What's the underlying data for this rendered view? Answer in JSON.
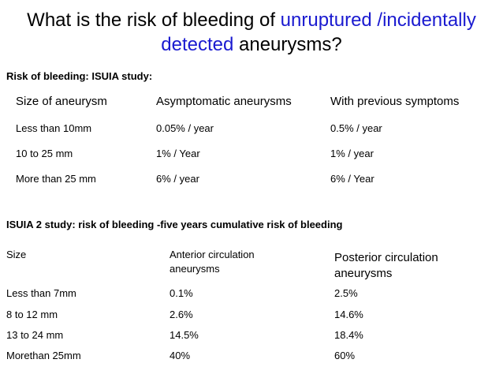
{
  "slide": {
    "title_part1": "What is the risk of bleeding of ",
    "title_highlight1": "unruptured /incidentally",
    "title_highlight2": "detected",
    "title_part2": " aneurysms?",
    "highlight_color": "#1a1ad0"
  },
  "isuia": {
    "heading": "Risk of bleeding: ISUIA study:",
    "headers": [
      "Size of aneurysm",
      "Asymptomatic aneurysms",
      "With previous symptoms"
    ],
    "rows": [
      [
        "Less than 10mm",
        "0.05% / year",
        "0.5% / year"
      ],
      [
        "10 to 25 mm",
        "1% / Year",
        "1% / year"
      ],
      [
        "More than 25 mm",
        "6% / year",
        "6% / Year"
      ]
    ]
  },
  "isuia2": {
    "heading": "ISUIA 2 study: risk of bleeding -five years cumulative risk of bleeding",
    "headers": [
      "Size",
      "Anterior circulation aneurysms",
      "Posterior circulation aneurysms"
    ],
    "rows": [
      [
        "Less than 7mm",
        "0.1%",
        "2.5%"
      ],
      [
        "8 to 12 mm",
        "2.6%",
        "14.6%"
      ],
      [
        "13 to 24 mm",
        "14.5%",
        "18.4%"
      ],
      [
        "Morethan 25mm",
        "40%",
        "60%"
      ]
    ]
  }
}
